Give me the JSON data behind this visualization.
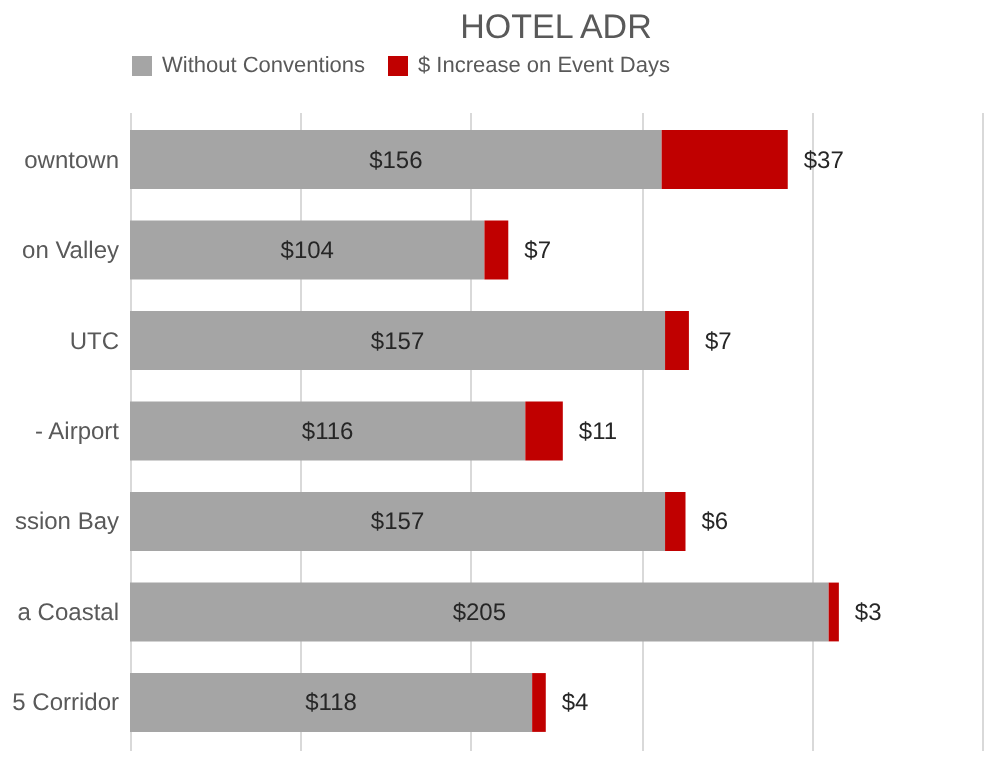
{
  "chart_data": {
    "type": "bar",
    "title": "HOTEL ADR",
    "orientation": "horizontal",
    "stacked": true,
    "categories": [
      "owntown",
      "on Valley",
      "UTC",
      "- Airport",
      "ssion Bay",
      "a Coastal",
      "5 Corridor"
    ],
    "series": [
      {
        "name": "Without Conventions",
        "color": "#a5a5a5",
        "values": [
          156,
          104,
          157,
          116,
          157,
          205,
          118
        ],
        "value_labels": [
          "$156",
          "$104",
          "$157",
          "$116",
          "$157",
          "$205",
          "$118"
        ]
      },
      {
        "name": "$ Increase on Event Days",
        "color": "#c00000",
        "values": [
          37,
          7,
          7,
          11,
          6,
          3,
          4
        ],
        "value_labels": [
          "$37",
          "$7",
          "$7",
          "$11",
          "$6",
          "$3",
          "$4"
        ]
      }
    ],
    "xlim": [
      0,
      250
    ],
    "xticks": [
      {
        "value": 0,
        "label": null
      },
      {
        "value": 50,
        "label": null
      },
      {
        "value": 100,
        "label": null
      },
      {
        "value": 150,
        "label": null
      },
      {
        "value": 200,
        "label": null
      },
      {
        "value": 250,
        "label": null
      }
    ],
    "grid": "x",
    "legend": "top",
    "tick_labels": "y"
  }
}
